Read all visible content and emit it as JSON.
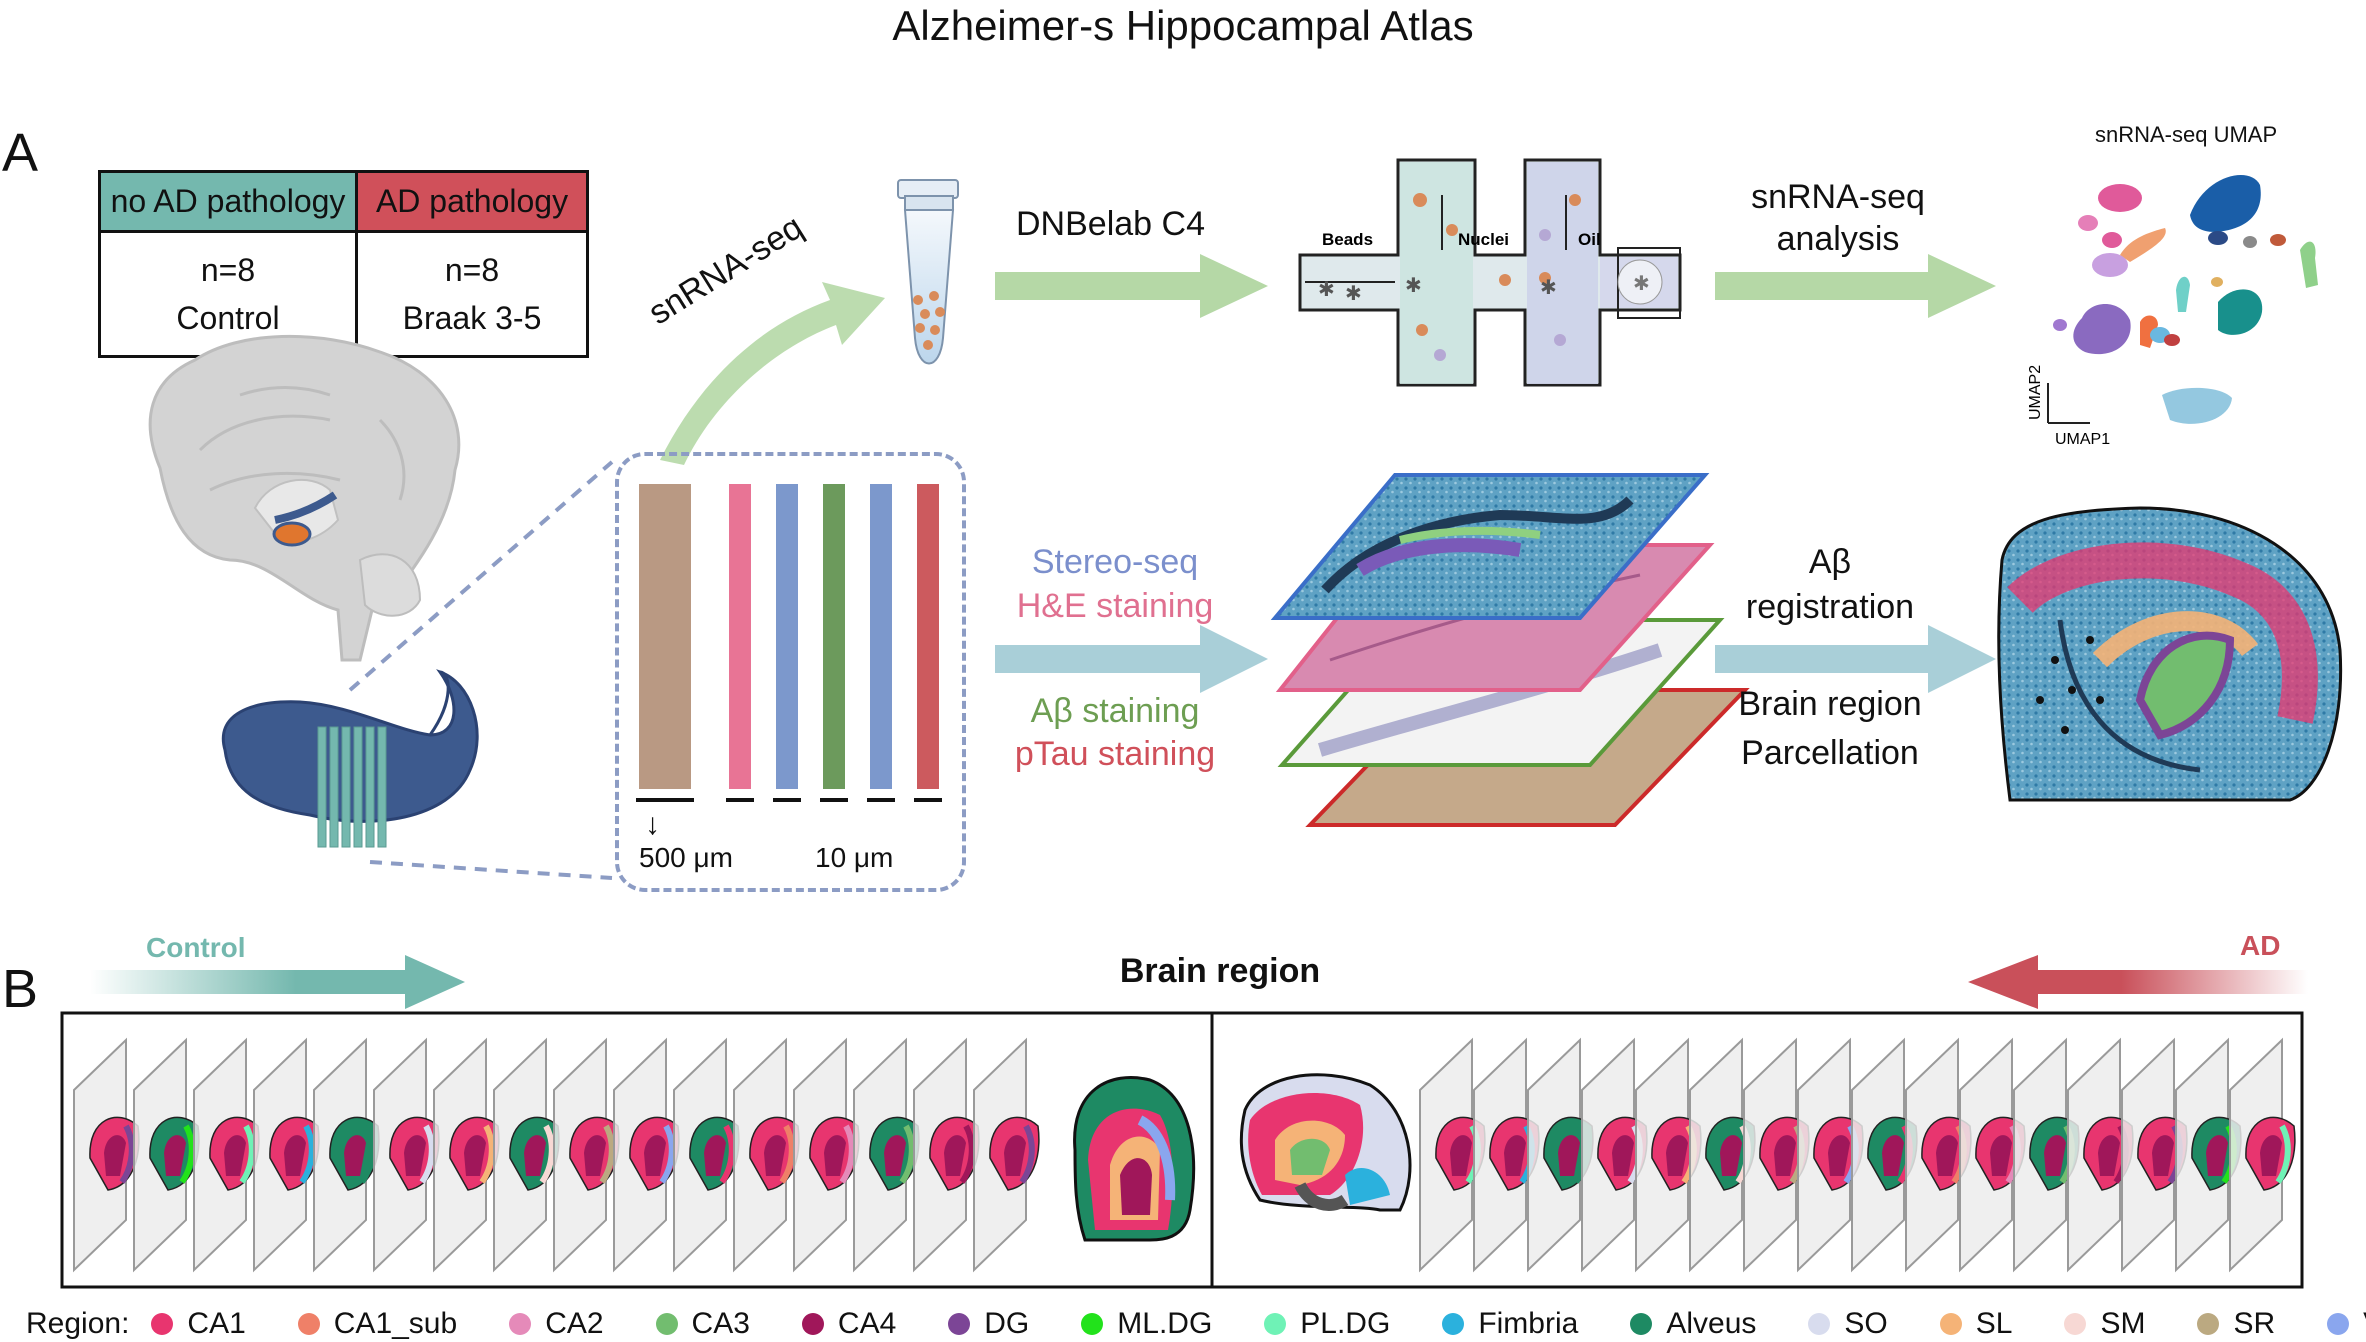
{
  "title": "Alzheimer-s Hippocampal Atlas",
  "panels": {
    "a": "A",
    "b": "B"
  },
  "groups_table": {
    "headers": [
      "no AD pathology",
      "AD pathology"
    ],
    "cells": [
      {
        "n": "n=8",
        "label": "Control"
      },
      {
        "n": "n=8",
        "label": "Braak 3-5"
      }
    ]
  },
  "workflow": {
    "snrna_seq": "snRNA-seq",
    "dnbelab": "DNBelab  C4",
    "chip_labels": {
      "beads": "Beads",
      "nuclei": "Nuclei",
      "oil": "Oil"
    },
    "analysis_line1": "snRNA-seq",
    "analysis_line2": "analysis",
    "umap_title": "snRNA-seq UMAP",
    "umap_x": "UMAP1",
    "umap_y": "UMAP2",
    "stains": [
      {
        "text": "Stereo-seq",
        "color": "#7b8fcc"
      },
      {
        "text": "H&E staining",
        "color": "#e07090"
      },
      {
        "text": "Aβ staining",
        "color": "#6d9e52"
      },
      {
        "text": "pTau staining",
        "color": "#d0505a"
      }
    ],
    "section_bars": [
      "#b99983",
      "#e87495",
      "#7c98cc",
      "#6c9a5c",
      "#7c98cc",
      "#cc5a5e"
    ],
    "thickness_thick": "500 μm",
    "thickness_thin": "10 μm",
    "reg_line1": "Aβ",
    "reg_line2": "registration",
    "parc_line1": "Brain region",
    "parc_line2": "Parcellation"
  },
  "panel_b": {
    "title": "Brain region",
    "control_label": "Control",
    "ad_label": "AD",
    "control_color": "#74b8ae",
    "ad_color": "#c9505a",
    "control_slices": 16,
    "ad_slices": 16
  },
  "legend": {
    "label": "Region:",
    "items": [
      {
        "name": "CA1",
        "color": "#e8356f"
      },
      {
        "name": "CA1_sub",
        "color": "#ef8068"
      },
      {
        "name": "CA2",
        "color": "#e58ab9"
      },
      {
        "name": "CA3",
        "color": "#72bd6f"
      },
      {
        "name": "CA4",
        "color": "#a0175a"
      },
      {
        "name": "DG",
        "color": "#7c4596"
      },
      {
        "name": "ML.DG",
        "color": "#22e21b"
      },
      {
        "name": "PL.DG",
        "color": "#6ff2b6"
      },
      {
        "name": "Fimbria",
        "color": "#2bb1dd"
      },
      {
        "name": "Alveus",
        "color": "#1e8a63"
      },
      {
        "name": "SO",
        "color": "#d8dcee"
      },
      {
        "name": "SL",
        "color": "#f5b377"
      },
      {
        "name": "SM",
        "color": "#f7d8d4"
      },
      {
        "name": "SR",
        "color": "#bba981"
      },
      {
        "name": "VES",
        "color": "#8aa6ee"
      }
    ]
  }
}
